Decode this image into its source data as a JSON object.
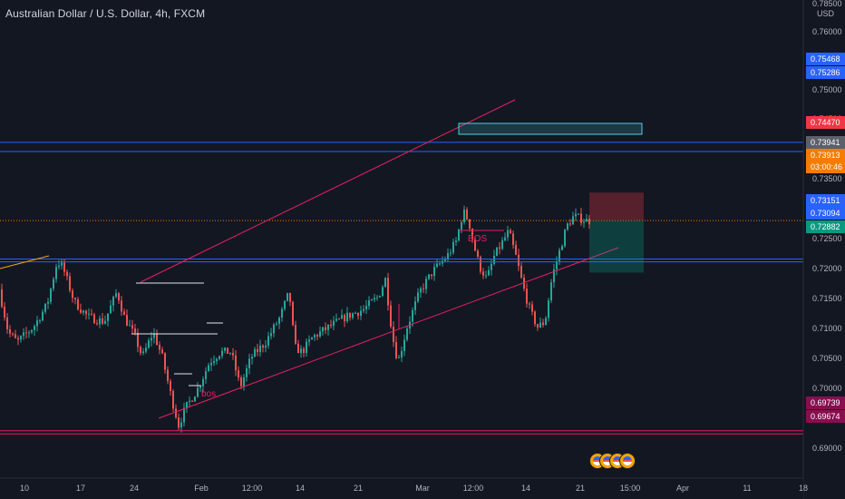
{
  "header": {
    "symbol_title": "Australian Dollar / U.S. Dollar, 4h, FXCM",
    "currency": "USD"
  },
  "colors": {
    "background": "#131722",
    "up_candle": "#26a69a",
    "down_candle": "#ef5350",
    "channel_line": "#e91e63",
    "horizontal_line": "#2962ff",
    "support_line": "#e91e63",
    "current_price_line": "#f57c00",
    "short_stop_zone": "rgba(242,54,69,0.3)",
    "short_target_zone": "rgba(8,153,129,0.3)",
    "order_block": "#4dd0e1"
  },
  "chart_data": {
    "type": "candlestick",
    "ylim": [
      0.686,
      0.783
    ],
    "y_ticks": [
      "0.69000",
      "0.69500",
      "0.70000",
      "0.70500",
      "0.71000",
      "0.71500",
      "0.72000",
      "0.72500",
      "0.73000",
      "0.73500",
      "0.74000",
      "0.74500",
      "0.75000",
      "0.75500",
      "0.76000",
      "0.78500"
    ],
    "x_ticks": [
      "10",
      "17",
      "24",
      "Feb",
      "12:00",
      "14",
      "21",
      "Mar",
      "12:00",
      "14",
      "21",
      "15:00",
      "Apr",
      "11",
      "18"
    ],
    "price_labels": [
      {
        "text": "0.75468",
        "value": 0.75468,
        "bg": "#2962ff",
        "fg": "#ffffff"
      },
      {
        "text": "0.75286",
        "value": 0.75286,
        "bg": "#2962ff",
        "fg": "#ffffff"
      },
      {
        "text": "0.74470",
        "value": 0.7447,
        "bg": "#f23645",
        "fg": "#ffffff"
      },
      {
        "text": "0.73941",
        "value": 0.73941,
        "bg": "#5d606b",
        "fg": "#ffffff"
      },
      {
        "text": "0.73913",
        "value": 0.73913,
        "bg": "#f57c00",
        "fg": "#ffffff"
      },
      {
        "text": "03:00:46",
        "value": 0.7374,
        "bg": "#f57c00",
        "fg": "#ffffff"
      },
      {
        "text": "0.73151",
        "value": 0.73151,
        "bg": "#2962ff",
        "fg": "#ffffff"
      },
      {
        "text": "0.73094",
        "value": 0.73094,
        "bg": "#2962ff",
        "fg": "#ffffff"
      },
      {
        "text": "0.72882",
        "value": 0.72882,
        "bg": "#089981",
        "fg": "#ffffff"
      },
      {
        "text": "0.69739",
        "value": 0.69739,
        "bg": "#880e4f",
        "fg": "#ffffff"
      },
      {
        "text": "0.69674",
        "value": 0.69674,
        "bg": "#880e4f",
        "fg": "#ffffff"
      }
    ],
    "horizontal_levels": [
      {
        "value": 0.75468,
        "color": "#2962ff"
      },
      {
        "value": 0.75286,
        "color": "#2962ff"
      },
      {
        "value": 0.73151,
        "color": "#2962ff"
      },
      {
        "value": 0.73094,
        "color": "#2962ff"
      },
      {
        "value": 0.69739,
        "color": "#e91e63"
      },
      {
        "value": 0.69674,
        "color": "#e91e63"
      }
    ],
    "current_price": 0.73913,
    "annotations": [
      "bos",
      "BOS"
    ]
  }
}
